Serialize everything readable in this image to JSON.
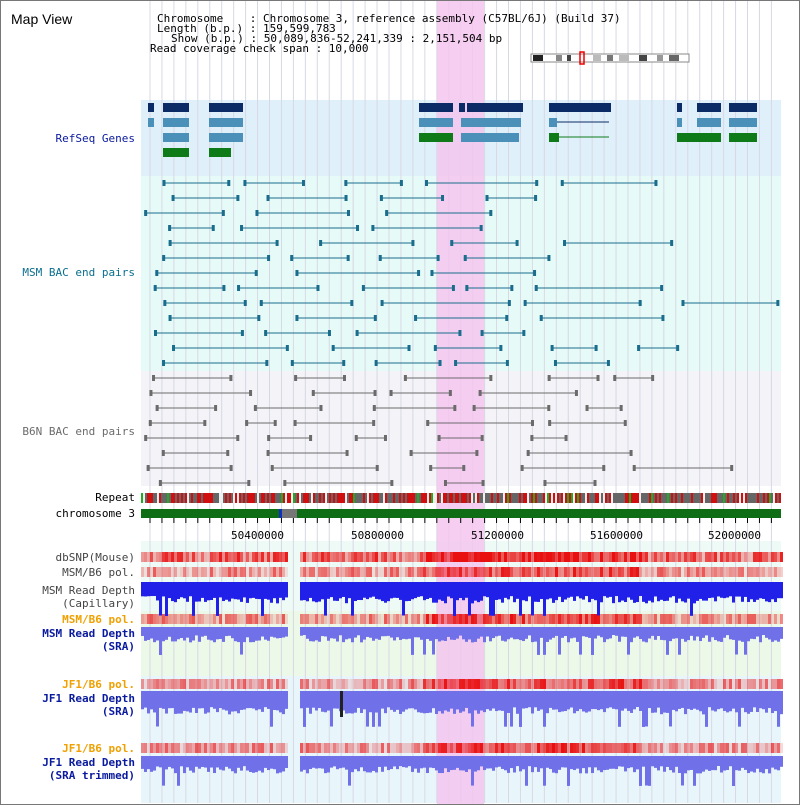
{
  "title": "Map View",
  "info": {
    "chromosome_line": "Chromosome    : Chromosome 3, reference assembly (C57BL/6J) (Build 37)",
    "length_line": "Length (b.p.) : 159,599,783",
    "show_line": "Show (b.p.) : 50,089,836-52,241,339 : 2,151,504 bp",
    "coverage_line": "Read coverage check span : 10,000"
  },
  "tracks": {
    "refseq": "RefSeq Genes",
    "msm_bac": "MSM BAC end pairs",
    "b6n_bac": "B6N BAC end pairs",
    "repeat": "Repeat",
    "chromosome": "chromosome 3",
    "dbsnp": "dbSNP(Mouse)",
    "msm_pol": "MSM/B6 pol.",
    "msm_depth_cap_1": "MSM Read Depth",
    "msm_depth_cap_2": "(Capillary)",
    "msm_pol_sra": "MSM/B6 pol.",
    "msm_depth_sra_1": "MSM Read Depth",
    "msm_depth_sra_2": "(SRA)",
    "jf1_pol": "JF1/B6 pol.",
    "jf1_depth_1": "JF1 Read Depth",
    "jf1_depth_2": "(SRA)",
    "jf1_pol_trim": "JF1/B6 pol.",
    "jf1_trim_1": "JF1 Read Depth",
    "jf1_trim_2": "(SRA trimmed)"
  },
  "scale": {
    "ticks": [
      "50400000",
      "50800000",
      "51200000",
      "51600000",
      "52000000"
    ]
  },
  "colors": {
    "highlight": "#f4c6ee",
    "refseq_band": "#dff0fb",
    "msm_band": "#e6fbf8",
    "b6n_band": "#f3f3f8",
    "gene_dark": "#0b2b66",
    "gene_light": "#4a90b8",
    "gene_green": "#0f7a18",
    "msm_pair": "#1a6d8c",
    "b6n_pair": "#6b6b6b",
    "chromosome_bar": "#0f6e15",
    "label_blue": "#0a1a9e",
    "label_teal": "#0a6e8e",
    "label_orange": "#f0a000"
  }
}
